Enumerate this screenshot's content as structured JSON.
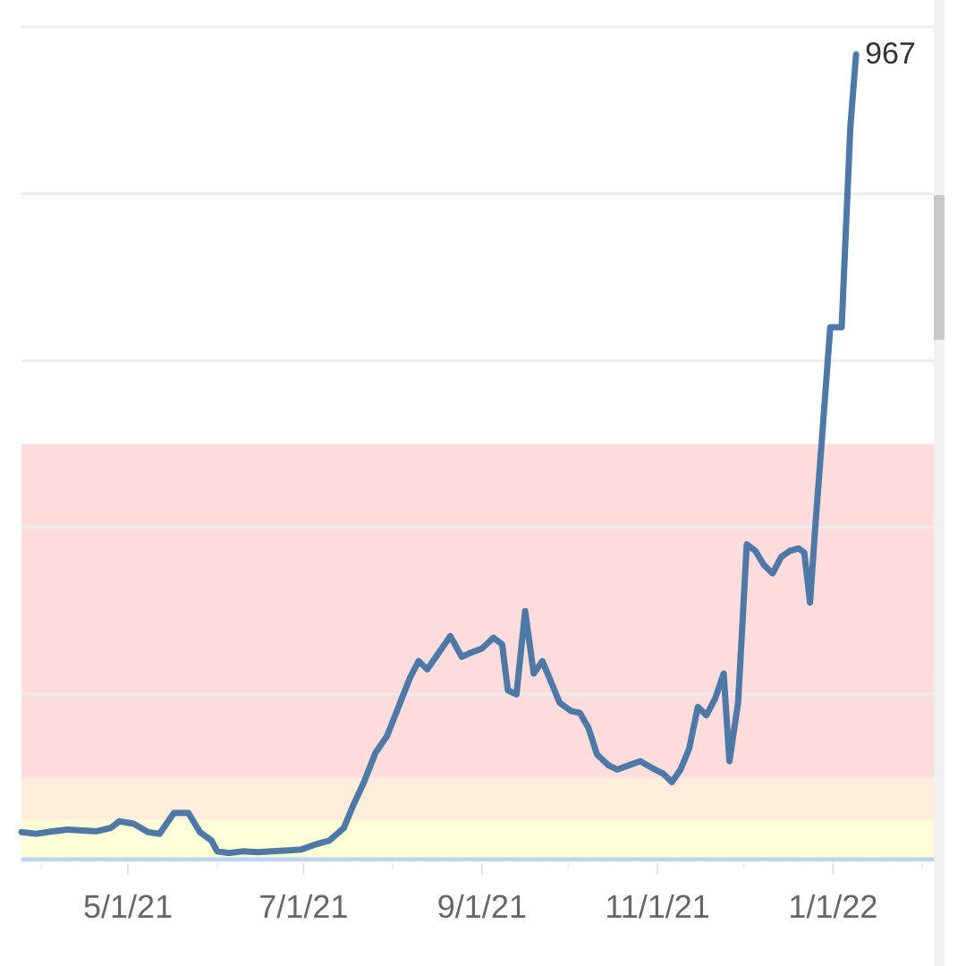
{
  "chart_data": {
    "type": "line",
    "title": "",
    "xlabel": "",
    "ylabel": "",
    "x_tick_labels": [
      "5/1/21",
      "7/1/21",
      "9/1/21",
      "11/1/21",
      "1/1/22"
    ],
    "x_tick_dates": [
      "2021-05-01",
      "2021-07-01",
      "2021-09-01",
      "2021-11-01",
      "2022-01-01"
    ],
    "xlim": [
      "2021-03-25",
      "2022-02-05"
    ],
    "ylim": [
      0,
      1000
    ],
    "y_gridlines": [
      200,
      400,
      600,
      800,
      1000
    ],
    "y_tick_labels_visible": false,
    "grid": true,
    "bands": [
      {
        "from": 0,
        "to": 5,
        "color": "#bcd4f4"
      },
      {
        "from": 5,
        "to": 50,
        "color": "#fffed6"
      },
      {
        "from": 50,
        "to": 100,
        "color": "#ffeddc"
      },
      {
        "from": 100,
        "to": 500,
        "color": "#ffdddd"
      }
    ],
    "series": [
      {
        "color": "#4e79a7",
        "end_label": "967",
        "points": [
          [
            "2021-03-25",
            35
          ],
          [
            "2021-03-30",
            33
          ],
          [
            "2021-04-05",
            36
          ],
          [
            "2021-04-10",
            38
          ],
          [
            "2021-04-15",
            37
          ],
          [
            "2021-04-20",
            36
          ],
          [
            "2021-04-25",
            40
          ],
          [
            "2021-04-28",
            48
          ],
          [
            "2021-05-03",
            45
          ],
          [
            "2021-05-08",
            35
          ],
          [
            "2021-05-12",
            33
          ],
          [
            "2021-05-17",
            58
          ],
          [
            "2021-05-22",
            58
          ],
          [
            "2021-05-26",
            35
          ],
          [
            "2021-05-30",
            25
          ],
          [
            "2021-06-01",
            12
          ],
          [
            "2021-06-05",
            10
          ],
          [
            "2021-06-10",
            12
          ],
          [
            "2021-06-15",
            11
          ],
          [
            "2021-06-20",
            12
          ],
          [
            "2021-06-25",
            13
          ],
          [
            "2021-06-30",
            14
          ],
          [
            "2021-07-05",
            20
          ],
          [
            "2021-07-10",
            25
          ],
          [
            "2021-07-15",
            40
          ],
          [
            "2021-07-18",
            65
          ],
          [
            "2021-07-22",
            95
          ],
          [
            "2021-07-26",
            130
          ],
          [
            "2021-07-30",
            150
          ],
          [
            "2021-08-03",
            185
          ],
          [
            "2021-08-07",
            220
          ],
          [
            "2021-08-10",
            240
          ],
          [
            "2021-08-13",
            230
          ],
          [
            "2021-08-18",
            255
          ],
          [
            "2021-08-21",
            270
          ],
          [
            "2021-08-25",
            245
          ],
          [
            "2021-08-28",
            250
          ],
          [
            "2021-09-01",
            255
          ],
          [
            "2021-09-05",
            268
          ],
          [
            "2021-09-08",
            260
          ],
          [
            "2021-09-10",
            205
          ],
          [
            "2021-09-13",
            200
          ],
          [
            "2021-09-16",
            300
          ],
          [
            "2021-09-19",
            225
          ],
          [
            "2021-09-22",
            240
          ],
          [
            "2021-09-25",
            215
          ],
          [
            "2021-09-28",
            190
          ],
          [
            "2021-10-02",
            180
          ],
          [
            "2021-10-05",
            178
          ],
          [
            "2021-10-08",
            160
          ],
          [
            "2021-10-11",
            128
          ],
          [
            "2021-10-15",
            115
          ],
          [
            "2021-10-18",
            110
          ],
          [
            "2021-10-22",
            115
          ],
          [
            "2021-10-26",
            120
          ],
          [
            "2021-10-30",
            112
          ],
          [
            "2021-11-03",
            105
          ],
          [
            "2021-11-06",
            95
          ],
          [
            "2021-11-09",
            110
          ],
          [
            "2021-11-12",
            135
          ],
          [
            "2021-11-15",
            185
          ],
          [
            "2021-11-18",
            175
          ],
          [
            "2021-11-21",
            195
          ],
          [
            "2021-11-24",
            225
          ],
          [
            "2021-11-26",
            120
          ],
          [
            "2021-11-29",
            190
          ],
          [
            "2021-12-02",
            380
          ],
          [
            "2021-12-05",
            372
          ],
          [
            "2021-12-08",
            355
          ],
          [
            "2021-12-11",
            345
          ],
          [
            "2021-12-14",
            365
          ],
          [
            "2021-12-17",
            372
          ],
          [
            "2021-12-20",
            375
          ],
          [
            "2021-12-22",
            370
          ],
          [
            "2021-12-24",
            310
          ],
          [
            "2021-12-26",
            410
          ],
          [
            "2021-12-28",
            500
          ],
          [
            "2021-12-31",
            640
          ],
          [
            "2022-01-04",
            640
          ],
          [
            "2022-01-07",
            880
          ],
          [
            "2022-01-09",
            967
          ]
        ]
      }
    ]
  }
}
